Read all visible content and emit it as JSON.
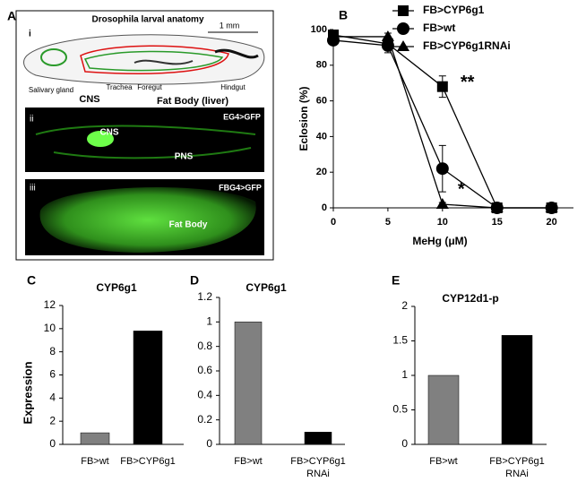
{
  "panel_a": {
    "label": "A",
    "title": "Drosophila larval anatomy",
    "scale": "1 mm",
    "sub_i": "i",
    "sub_ii": "ii",
    "sub_iii": "iii",
    "parts": [
      "Salivary gland",
      "CNS",
      "Trachea",
      "Foregut",
      "Fat Body (liver)",
      "Hindgut"
    ],
    "image_ii": {
      "tag": "EG4>GFP",
      "labels": [
        "CNS",
        "PNS"
      ]
    },
    "image_iii": {
      "tag": "FBG4>GFP",
      "labels": [
        "Fat Body"
      ]
    }
  },
  "chart_data": [
    {
      "type": "line",
      "panel": "B",
      "x_label": "MeHg (μM)",
      "y_label": "Eclosion (%)",
      "x": [
        0,
        5,
        10,
        15,
        20
      ],
      "xlim": [
        0,
        22
      ],
      "xticks": [
        0,
        5,
        10,
        15,
        20
      ],
      "ylim": [
        0,
        100
      ],
      "yticks": [
        0,
        20,
        40,
        60,
        80,
        100
      ],
      "series": [
        {
          "name": "FB>CYP6g1",
          "color": "#000000",
          "marker": "square",
          "values": [
            97,
            92,
            68,
            0,
            0
          ],
          "errors": [
            1,
            3,
            6,
            0,
            0
          ]
        },
        {
          "name": "FB>wt",
          "color": "#000000",
          "marker": "circle",
          "values": [
            94,
            91,
            22,
            0,
            0
          ],
          "errors": [
            2,
            4,
            13,
            0,
            0
          ]
        },
        {
          "name": "FB>CYP6g1RNAi",
          "color": "#000000",
          "marker": "triangle",
          "values": [
            96,
            96,
            2,
            0,
            0
          ],
          "errors": [
            1,
            2,
            1,
            0,
            0
          ]
        }
      ],
      "annotations": [
        "**",
        "*"
      ]
    },
    {
      "type": "bar",
      "panel": "C",
      "title": "CYP6g1",
      "y_label": "Expression",
      "categories": [
        "FB>wt",
        "FB>CYP6g1"
      ],
      "values": [
        1,
        9.8
      ],
      "colors": [
        "#808080",
        "#000000"
      ],
      "ylim": [
        0,
        12
      ],
      "yticks": [
        0,
        2,
        4,
        6,
        8,
        10,
        12
      ]
    },
    {
      "type": "bar",
      "panel": "D",
      "title": "CYP6g1",
      "categories": [
        "FB>wt",
        "FB>CYP6g1 RNAi"
      ],
      "values": [
        1,
        0.1
      ],
      "colors": [
        "#808080",
        "#000000"
      ],
      "ylim": [
        0,
        1.2
      ],
      "yticks": [
        0,
        0.2,
        0.4,
        0.6,
        0.8,
        1,
        1.2
      ]
    },
    {
      "type": "bar",
      "panel": "E",
      "title": "CYP12d1-p",
      "categories": [
        "FB>wt",
        "FB>CYP6g1 RNAi"
      ],
      "values": [
        1,
        1.58
      ],
      "colors": [
        "#808080",
        "#000000"
      ],
      "ylim": [
        0,
        2
      ],
      "yticks": [
        0,
        0.5,
        1,
        1.5,
        2
      ]
    }
  ]
}
